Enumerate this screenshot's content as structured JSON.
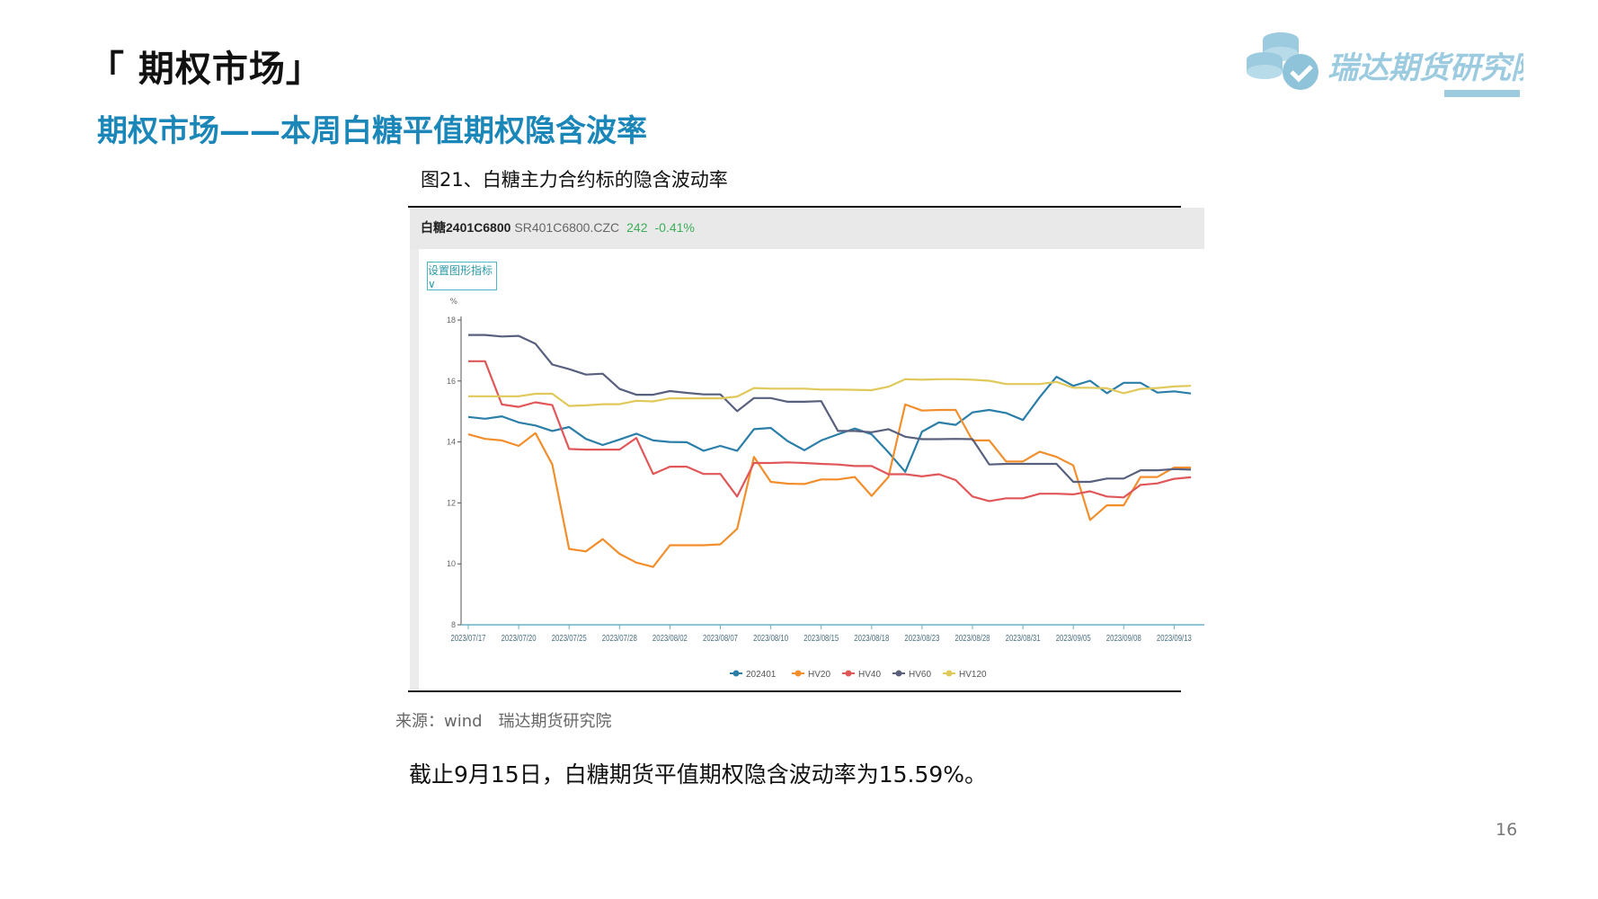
{
  "header": {
    "title": "「 期权市场」",
    "subtitle": "期权市场——本周白糖平值期权隐含波率"
  },
  "logo": {
    "text": "瑞达期货研究院",
    "color": "#9ccbe0"
  },
  "figure": {
    "caption": "图21、白糖主力合约标的隐含波动率"
  },
  "instrument": {
    "name": "白糖2401C6800",
    "code": "SR401C6800.CZC",
    "price": "242",
    "change": "-0.41%",
    "change_color": "#3cae5a"
  },
  "indicator_button": {
    "label": "设置图形指标 ∨"
  },
  "chart_data": {
    "type": "line",
    "ylabel": "%",
    "ylim": [
      8,
      18
    ],
    "yticks": [
      8,
      10,
      12,
      14,
      16,
      18
    ],
    "grid": false,
    "legend_placement": "bottom",
    "x": [
      "2023/07/17",
      "2023/07/18",
      "2023/07/19",
      "2023/07/20",
      "2023/07/21",
      "2023/07/24",
      "2023/07/25",
      "2023/07/26",
      "2023/07/27",
      "2023/07/28",
      "2023/07/31",
      "2023/08/01",
      "2023/08/02",
      "2023/08/03",
      "2023/08/04",
      "2023/08/07",
      "2023/08/08",
      "2023/08/09",
      "2023/08/10",
      "2023/08/11",
      "2023/08/14",
      "2023/08/15",
      "2023/08/16",
      "2023/08/17",
      "2023/08/18",
      "2023/08/21",
      "2023/08/22",
      "2023/08/23",
      "2023/08/24",
      "2023/08/25",
      "2023/08/28",
      "2023/08/29",
      "2023/08/30",
      "2023/08/31",
      "2023/09/01",
      "2023/09/04",
      "2023/09/05",
      "2023/09/06",
      "2023/09/07",
      "2023/09/08",
      "2023/09/11",
      "2023/09/12",
      "2023/09/13",
      "2023/09/15"
    ],
    "xticks": [
      "2023/07/17",
      "2023/07/20",
      "2023/07/25",
      "2023/07/28",
      "2023/08/02",
      "2023/08/07",
      "2023/08/10",
      "2023/08/15",
      "2023/08/18",
      "2023/08/23",
      "2023/08/28",
      "2023/08/31",
      "2023/09/05",
      "2023/09/08",
      "2023/09/13"
    ],
    "series": [
      {
        "name": "202401",
        "color": "#2b7ea8",
        "values": [
          14.82,
          14.76,
          14.84,
          14.64,
          14.54,
          14.36,
          14.49,
          14.1,
          13.9,
          14.08,
          14.27,
          14.05,
          14.0,
          13.99,
          13.71,
          13.87,
          13.71,
          14.42,
          14.46,
          14.03,
          13.73,
          14.05,
          14.25,
          14.44,
          14.25,
          13.66,
          13.02,
          14.34,
          14.64,
          14.56,
          14.97,
          15.05,
          14.95,
          14.72,
          15.47,
          16.14,
          15.84,
          16.01,
          15.6,
          15.94,
          15.94,
          15.62,
          15.66,
          15.59
        ]
      },
      {
        "name": "HV20",
        "color": "#f28e2b",
        "values": [
          14.25,
          14.1,
          14.05,
          13.87,
          14.29,
          13.26,
          10.49,
          10.41,
          10.81,
          10.33,
          10.04,
          9.9,
          10.61,
          10.61,
          10.61,
          10.64,
          11.15,
          13.51,
          12.69,
          12.63,
          12.62,
          12.77,
          12.77,
          12.85,
          12.23,
          12.85,
          15.23,
          15.03,
          15.05,
          15.05,
          14.05,
          14.05,
          13.36,
          13.36,
          13.68,
          13.51,
          13.23,
          11.44,
          11.92,
          11.92,
          12.85,
          12.85,
          13.16,
          13.16
        ]
      },
      {
        "name": "HV40",
        "color": "#e15759",
        "values": [
          16.65,
          16.65,
          15.23,
          15.15,
          15.3,
          15.21,
          13.77,
          13.75,
          13.75,
          13.75,
          14.13,
          12.95,
          13.19,
          13.19,
          12.95,
          12.95,
          12.21,
          13.31,
          13.31,
          13.33,
          13.31,
          13.28,
          13.26,
          13.21,
          13.21,
          12.94,
          12.94,
          12.87,
          12.94,
          12.75,
          12.21,
          12.06,
          12.15,
          12.15,
          12.3,
          12.3,
          12.28,
          12.38,
          12.21,
          12.18,
          12.59,
          12.64,
          12.79,
          12.84
        ]
      },
      {
        "name": "HV60",
        "color": "#59607e",
        "values": [
          17.51,
          17.51,
          17.46,
          17.48,
          17.22,
          16.54,
          16.39,
          16.21,
          16.24,
          15.74,
          15.55,
          15.55,
          15.67,
          15.61,
          15.56,
          15.56,
          15.01,
          15.44,
          15.44,
          15.32,
          15.32,
          15.34,
          14.36,
          14.36,
          14.32,
          14.42,
          14.17,
          14.09,
          14.09,
          14.1,
          14.09,
          13.26,
          13.28,
          13.28,
          13.28,
          13.28,
          12.69,
          12.69,
          12.8,
          12.8,
          13.07,
          13.07,
          13.11,
          13.09
        ]
      },
      {
        "name": "HV120",
        "color": "#e0c95a",
        "values": [
          15.5,
          15.5,
          15.5,
          15.5,
          15.58,
          15.58,
          15.18,
          15.2,
          15.24,
          15.24,
          15.35,
          15.33,
          15.43,
          15.43,
          15.43,
          15.43,
          15.49,
          15.77,
          15.75,
          15.75,
          15.75,
          15.72,
          15.72,
          15.71,
          15.7,
          15.81,
          16.06,
          16.04,
          16.06,
          16.06,
          16.04,
          16.01,
          15.9,
          15.9,
          15.9,
          15.97,
          15.78,
          15.78,
          15.76,
          15.6,
          15.74,
          15.77,
          15.82,
          15.84
        ]
      }
    ]
  },
  "source": "来源：wind　瑞达期货研究院",
  "body_text": "截止9月15日，白糖期货平值期权隐含波动率为15.59%。",
  "page_number": "16"
}
